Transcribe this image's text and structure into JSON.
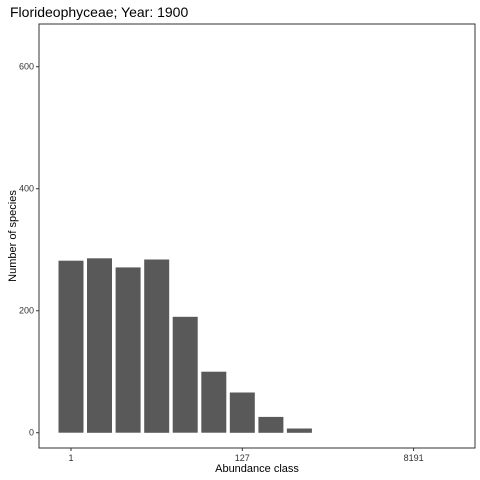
{
  "chart_data": {
    "type": "bar",
    "title": "Florideophyceae; Year: 1900",
    "xlabel": "Abundance class",
    "ylabel": "Number of species",
    "x_tick_labels": [
      "1",
      "127",
      "8191"
    ],
    "y_ticks": [
      0,
      200,
      400,
      600
    ],
    "ylim": [
      -25,
      670
    ],
    "grid": false,
    "legend": "none",
    "bar_color": "#595959",
    "categories": [
      1,
      2,
      3,
      4,
      5,
      6,
      7,
      8,
      9
    ],
    "values": [
      282,
      286,
      271,
      284,
      190,
      100,
      66,
      26,
      7
    ]
  }
}
